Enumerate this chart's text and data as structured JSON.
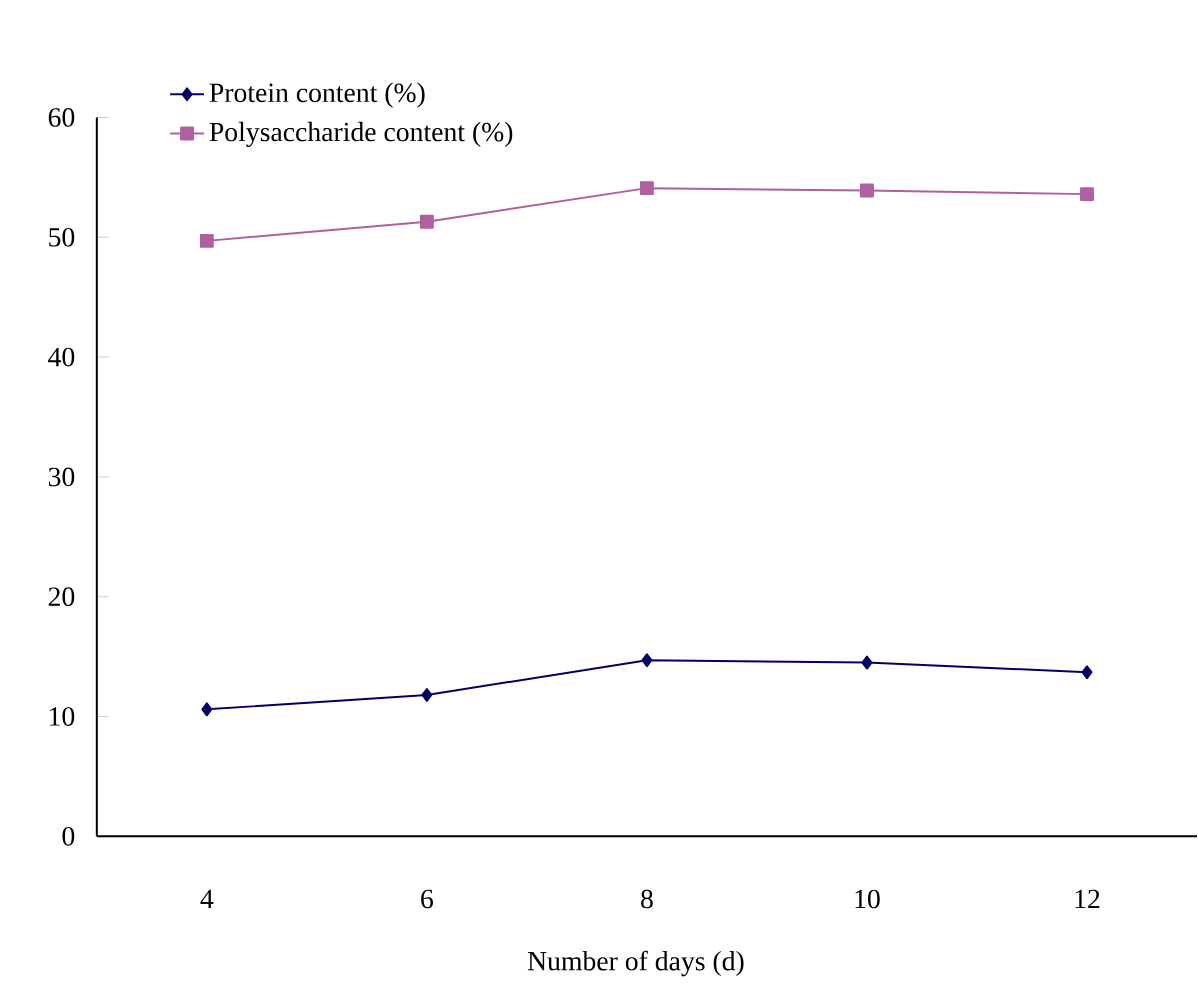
{
  "chart_data": {
    "type": "line",
    "xlabel": "Number of days (d)",
    "categories": [
      "4",
      "6",
      "8",
      "10",
      "12"
    ],
    "series": [
      {
        "name": "Protein content (%)",
        "color": "#000066",
        "marker": "diamond",
        "values": [
          10.6,
          11.8,
          14.7,
          14.5,
          13.7
        ]
      },
      {
        "name": "Polysaccharide content (%)",
        "color": "#b0609f",
        "marker": "square",
        "values": [
          49.7,
          51.3,
          54.1,
          53.9,
          53.6
        ]
      }
    ],
    "ylim": [
      0,
      60
    ],
    "yticks": [
      0,
      10,
      20,
      30,
      40,
      50,
      60
    ],
    "legend": "top left",
    "grid": false
  }
}
